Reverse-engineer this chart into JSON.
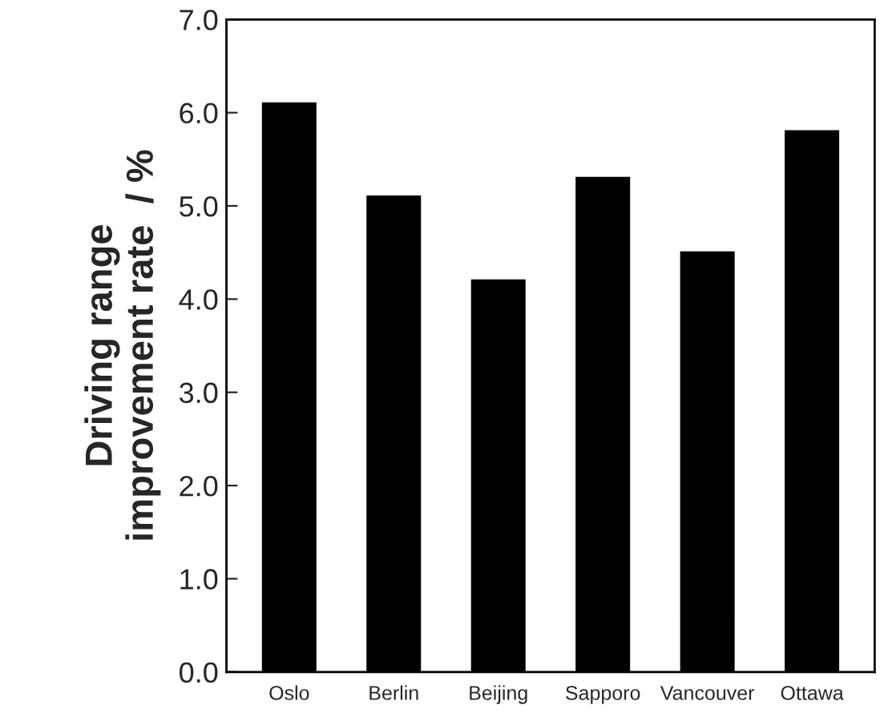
{
  "chart_data": {
    "type": "bar",
    "ylabel": "Driving range\nimprovement rate  / %",
    "categories": [
      "Oslo",
      "Berlin",
      "Beijing",
      "Sapporo",
      "Vancouver",
      "Ottawa"
    ],
    "values": [
      6.1,
      5.1,
      4.2,
      5.3,
      4.5,
      5.8
    ],
    "color": "#000000",
    "ylim": [
      0,
      7
    ],
    "yticks": [
      {
        "value": 0,
        "label": "0.0"
      },
      {
        "value": 1,
        "label": "1.0"
      },
      {
        "value": 2,
        "label": "2.0"
      },
      {
        "value": 3,
        "label": "3.0"
      },
      {
        "value": 4,
        "label": "4.0"
      },
      {
        "value": 5,
        "label": "5.0"
      },
      {
        "value": 6,
        "label": "6.0"
      },
      {
        "value": 7,
        "label": "7.0"
      }
    ],
    "grid": false
  }
}
